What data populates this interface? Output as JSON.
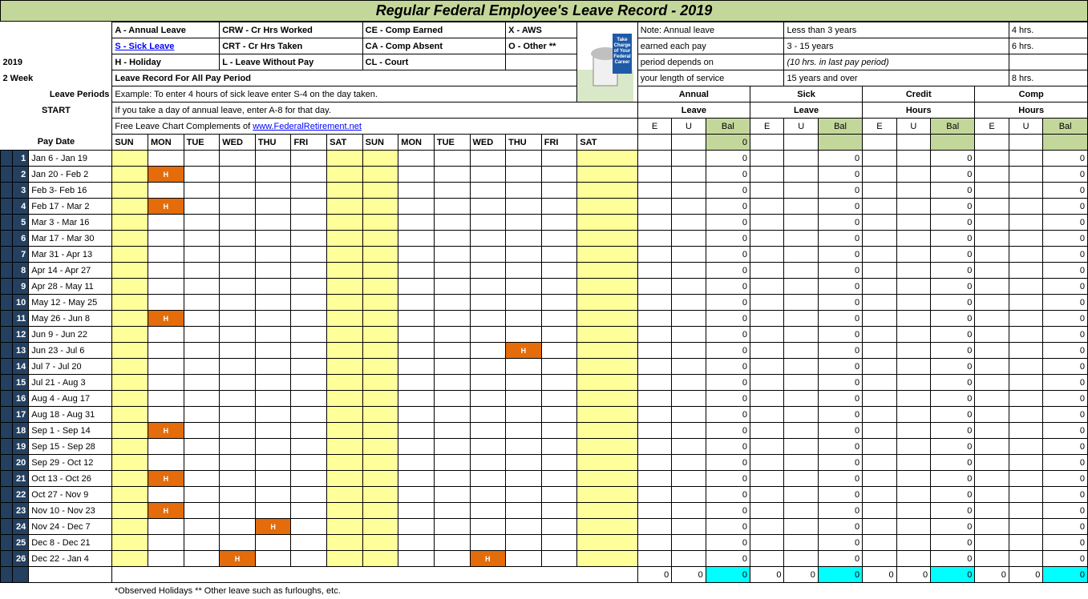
{
  "title": "Regular Federal Employee's Leave Record - 2019",
  "year": "2019",
  "period": "2 Week",
  "left_labels": {
    "leave_periods": "Leave Periods",
    "start": "START",
    "paydate": "Pay Date"
  },
  "legend": {
    "r1c1": "A - Annual Leave",
    "r1c2": "CRW - Cr Hrs Worked",
    "r1c3": "CE - Comp Earned",
    "r1c4": "X - AWS",
    "r2c1": "S  - Sick Leave",
    "r2c2": "CRT - Cr Hrs Taken",
    "r2c3": "CA - Comp Absent",
    "r2c4": "O - Other **",
    "r3c1": "H - Holiday",
    "r3c2": "L     - Leave Without Pay",
    "r3c3": "CL  - Court"
  },
  "note": {
    "l1": "Note:  Annual leave",
    "l2": "earned each pay",
    "l3": "period depends on",
    "l4": "your length of service"
  },
  "accrual": {
    "l1a": "Less than 3 years",
    "l1b": "4 hrs.",
    "l2a": "3 - 15 years",
    "l2b": "6 hrs.",
    "l3a": "(10 hrs. in last pay period)",
    "l4a": "15 years and over",
    "l4b": "8 hrs."
  },
  "instructions": {
    "i1": "Leave Record For All Pay Period",
    "i2": "Example: To enter 4 hours of sick leave enter S-4 on the day taken.",
    "i3": "If you take a day of annual leave, enter A-8 for that day.",
    "i4a": "Free Leave Chart Complements of  ",
    "i4b": "www.FederalRetirement.net"
  },
  "categories": {
    "annual": "Annual",
    "sick": "Sick",
    "credit": "Credit",
    "comp": "Comp",
    "leave": "Leave",
    "hours": "Hours"
  },
  "eub": {
    "e": "E",
    "u": "U",
    "bal": "Bal"
  },
  "days": [
    "SUN",
    "MON",
    "TUE",
    "WED",
    "THU",
    "FRI",
    "SAT",
    "SUN",
    "MON",
    "TUE",
    "WED",
    "THU",
    "FRI",
    "SAT"
  ],
  "rows": [
    {
      "n": "1",
      "date": "Jan 6 - Jan 19",
      "h": []
    },
    {
      "n": "2",
      "date": "Jan 20 - Feb 2",
      "h": [
        1
      ]
    },
    {
      "n": "3",
      "date": "Feb 3- Feb 16",
      "h": []
    },
    {
      "n": "4",
      "date": "Feb 17 - Mar 2",
      "h": [
        1
      ]
    },
    {
      "n": "5",
      "date": "Mar 3 - Mar 16",
      "h": []
    },
    {
      "n": "6",
      "date": "Mar 17 - Mar 30",
      "h": []
    },
    {
      "n": "7",
      "date": "Mar 31 - Apr  13",
      "h": []
    },
    {
      "n": "8",
      "date": "Apr  14 - Apr 27",
      "h": []
    },
    {
      "n": "9",
      "date": "Apr 28 - May 11",
      "h": []
    },
    {
      "n": "10",
      "date": "May 12 - May 25",
      "h": []
    },
    {
      "n": "11",
      "date": "May 26 - Jun 8",
      "h": [
        1
      ]
    },
    {
      "n": "12",
      "date": "Jun 9 - Jun 22",
      "h": []
    },
    {
      "n": "13",
      "date": "Jun 23 - Jul 6",
      "h": [
        11
      ]
    },
    {
      "n": "14",
      "date": "Jul 7 - Jul 20",
      "h": []
    },
    {
      "n": "15",
      "date": "Jul 21 - Aug 3",
      "h": []
    },
    {
      "n": "16",
      "date": "Aug 4 - Aug 17",
      "h": []
    },
    {
      "n": "17",
      "date": "Aug 18 - Aug 31",
      "h": []
    },
    {
      "n": "18",
      "date": "Sep 1 - Sep  14",
      "h": [
        1
      ]
    },
    {
      "n": "19",
      "date": "Sep  15 - Sep 28",
      "h": []
    },
    {
      "n": "20",
      "date": "Sep 29 - Oct  12",
      "h": []
    },
    {
      "n": "21",
      "date": "Oct  13 - Oct 26",
      "h": [
        1
      ]
    },
    {
      "n": "22",
      "date": "Oct 27 - Nov  9",
      "h": []
    },
    {
      "n": "23",
      "date": "Nov  10 - Nov 23",
      "h": [
        1
      ]
    },
    {
      "n": "24",
      "date": "Nov 24 - Dec  7",
      "h": [
        4
      ]
    },
    {
      "n": "25",
      "date": "Dec  8 - Dec 21",
      "h": []
    },
    {
      "n": "26",
      "date": "Dec 22 - Jan 4",
      "h": [
        3,
        10
      ]
    }
  ],
  "zero": "0",
  "footnote": "*Observed Holidays  ** Other leave such as furloughs, etc.",
  "colors": {
    "title_bg": "#c4d79b",
    "dark": "#244061",
    "yellow": "#ffff99",
    "holiday": "#e46c0a",
    "cyan": "#00ffff",
    "link": "#0000ff"
  },
  "book": {
    "t1": "Take",
    "t2": "Charge",
    "t3": "of Your",
    "t4": "Federal",
    "t5": "Career"
  }
}
